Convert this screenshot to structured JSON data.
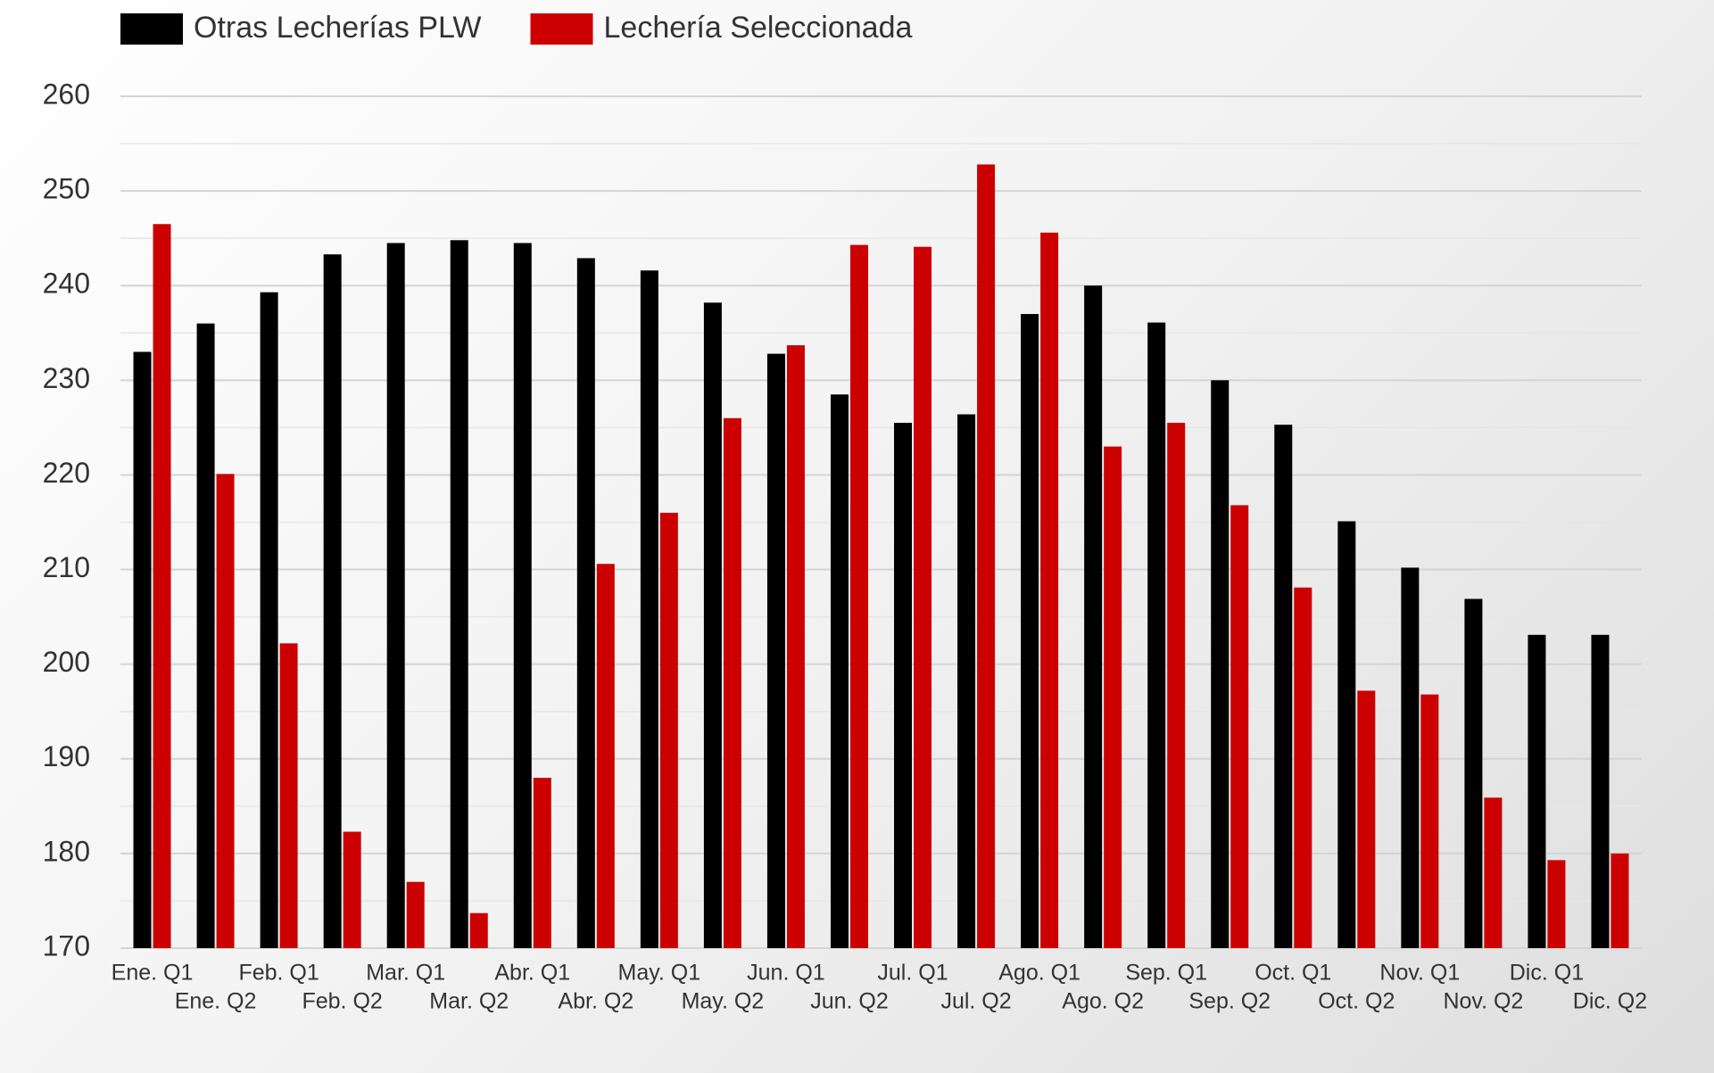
{
  "chart_data": {
    "type": "bar",
    "categories": [
      "Ene. Q1",
      "Ene. Q2",
      "Feb. Q1",
      "Feb. Q2",
      "Mar. Q1",
      "Mar. Q2",
      "Abr. Q1",
      "Abr. Q2",
      "May. Q1",
      "May. Q2",
      "Jun. Q1",
      "Jun. Q2",
      "Jul. Q1",
      "Jul. Q2",
      "Ago. Q1",
      "Ago. Q2",
      "Sep. Q1",
      "Sep. Q2",
      "Oct. Q1",
      "Oct. Q2",
      "Nov. Q1",
      "Nov. Q2",
      "Dic. Q1",
      "Dic. Q2"
    ],
    "series": [
      {
        "name": "Otras Lecherías PLW",
        "color": "#000000",
        "values": [
          233,
          236,
          239.3,
          243.3,
          244.5,
          244.8,
          244.5,
          242.9,
          241.6,
          238.2,
          232.8,
          228.5,
          225.5,
          226.4,
          237,
          240,
          236.1,
          230,
          225.3,
          215.1,
          210.2,
          206.9,
          203.1,
          203.1
        ]
      },
      {
        "name": "Lechería Seleccionada",
        "color": "#cc0000",
        "values": [
          246.5,
          220.1,
          202.2,
          182.3,
          177,
          173.7,
          188,
          210.6,
          216,
          226,
          233.7,
          244.3,
          244.1,
          252.8,
          245.6,
          223,
          225.5,
          216.8,
          208.1,
          197.2,
          196.8,
          185.9,
          179.3,
          180
        ]
      }
    ],
    "ylim": [
      170,
      260
    ],
    "yticks": [
      170,
      180,
      190,
      200,
      210,
      220,
      230,
      240,
      250,
      260
    ],
    "grid": true,
    "legend": "top-left"
  }
}
